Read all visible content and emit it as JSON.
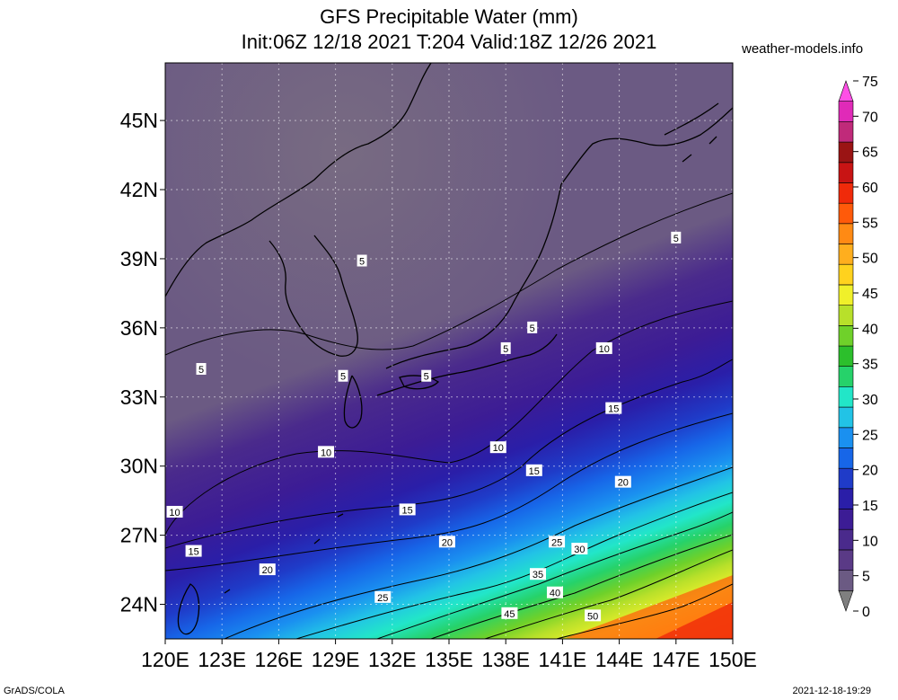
{
  "title": {
    "line1": "GFS Precipitable Water (mm)",
    "line2": "Init:06Z 12/18 2021 T:204 Valid:18Z 12/26 2021"
  },
  "source_label": "weather-models.info",
  "footer": {
    "left": "GrADS/COLA",
    "right": "2021-12-18-19:29"
  },
  "map": {
    "lon_range": [
      120,
      150
    ],
    "lat_range": [
      22.5,
      47.5
    ],
    "x_ticks": [
      "120E",
      "123E",
      "126E",
      "129E",
      "132E",
      "135E",
      "138E",
      "141E",
      "144E",
      "147E",
      "150E"
    ],
    "y_ticks": [
      "45N",
      "42N",
      "39N",
      "36N",
      "33N",
      "30N",
      "27N",
      "24N"
    ],
    "x_tick_values": [
      120,
      123,
      126,
      129,
      132,
      135,
      138,
      141,
      144,
      147,
      150
    ],
    "y_tick_values": [
      45,
      42,
      39,
      36,
      33,
      30,
      27,
      24
    ]
  },
  "colorbar": {
    "labels": [
      "75",
      "70",
      "65",
      "60",
      "55",
      "50",
      "45",
      "40",
      "35",
      "30",
      "25",
      "20",
      "15",
      "10",
      "5",
      "0"
    ],
    "colors": [
      "#7f7f7f",
      "#6b5a83",
      "#5a3a86",
      "#4a2a8c",
      "#3c1c95",
      "#2a1ea8",
      "#1f3bc8",
      "#1766e8",
      "#1a90f0",
      "#22c3e6",
      "#22e6c8",
      "#26d26a",
      "#2cbf2c",
      "#6fd12a",
      "#b8e02a",
      "#f0f02a",
      "#ffd21e",
      "#ffae1e",
      "#ff8a14",
      "#ff5a0a",
      "#f02a0a",
      "#c81414",
      "#9a1414",
      "#c02a7a",
      "#e02ab8",
      "#ff4fe6"
    ],
    "colors_note": "colors listed bottom(0) to top(75)"
  },
  "contour_labels": [
    {
      "text": "5",
      "lon": 121.9,
      "lat": 34.2
    },
    {
      "text": "5",
      "lon": 130.4,
      "lat": 38.9
    },
    {
      "text": "5",
      "lon": 129.4,
      "lat": 33.9
    },
    {
      "text": "5",
      "lon": 133.8,
      "lat": 33.9
    },
    {
      "text": "5",
      "lon": 138.0,
      "lat": 35.1
    },
    {
      "text": "5",
      "lon": 139.4,
      "lat": 36.0
    },
    {
      "text": "5",
      "lon": 147.0,
      "lat": 39.9
    },
    {
      "text": "10",
      "lon": 120.5,
      "lat": 28.0
    },
    {
      "text": "10",
      "lon": 128.5,
      "lat": 30.6
    },
    {
      "text": "10",
      "lon": 137.6,
      "lat": 30.8
    },
    {
      "text": "10",
      "lon": 143.2,
      "lat": 35.1
    },
    {
      "text": "15",
      "lon": 121.5,
      "lat": 26.3
    },
    {
      "text": "15",
      "lon": 132.8,
      "lat": 28.1
    },
    {
      "text": "15",
      "lon": 139.5,
      "lat": 29.8
    },
    {
      "text": "15",
      "lon": 143.7,
      "lat": 32.5
    },
    {
      "text": "20",
      "lon": 125.4,
      "lat": 25.5
    },
    {
      "text": "20",
      "lon": 134.9,
      "lat": 26.7
    },
    {
      "text": "20",
      "lon": 144.2,
      "lat": 29.3
    },
    {
      "text": "25",
      "lon": 131.5,
      "lat": 24.3
    },
    {
      "text": "25",
      "lon": 140.7,
      "lat": 26.7
    },
    {
      "text": "30",
      "lon": 141.9,
      "lat": 26.4
    },
    {
      "text": "35",
      "lon": 139.7,
      "lat": 25.3
    },
    {
      "text": "40",
      "lon": 140.6,
      "lat": 24.5
    },
    {
      "text": "45",
      "lon": 138.2,
      "lat": 23.6
    },
    {
      "text": "50",
      "lon": 142.6,
      "lat": 23.5
    }
  ]
}
